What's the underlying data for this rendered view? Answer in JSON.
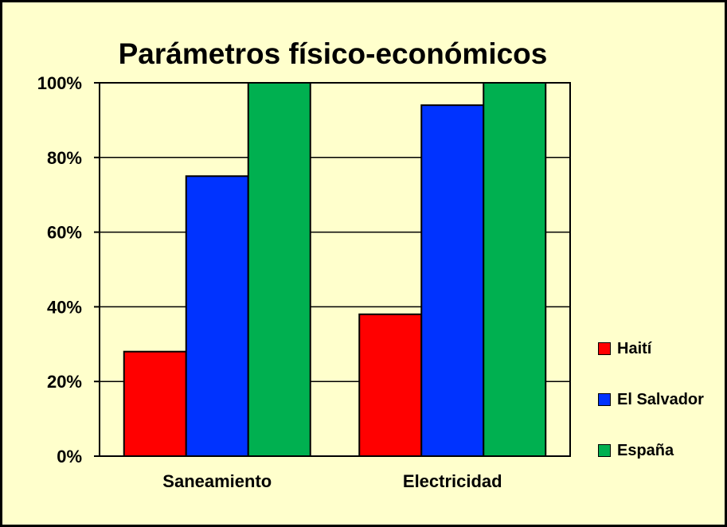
{
  "chart_data": {
    "type": "bar",
    "title": "Parámetros físico-económicos",
    "xlabel": "",
    "ylabel": "",
    "categories": [
      "Saneamiento",
      "Electricidad"
    ],
    "series": [
      {
        "name": "Haití",
        "values": [
          28,
          38
        ],
        "color": "#ff0000"
      },
      {
        "name": "El Salvador",
        "values": [
          75,
          94
        ],
        "color": "#0033ff"
      },
      {
        "name": "España",
        "values": [
          100,
          100
        ],
        "color": "#00b050"
      }
    ],
    "ylim": [
      0,
      100
    ],
    "yticks": [
      0,
      20,
      40,
      60,
      80,
      100
    ],
    "ytick_labels": [
      "0%",
      "20%",
      "40%",
      "60%",
      "80%",
      "100%"
    ],
    "grid": true,
    "legend_position": "right",
    "background_color": "#ffffcc"
  }
}
